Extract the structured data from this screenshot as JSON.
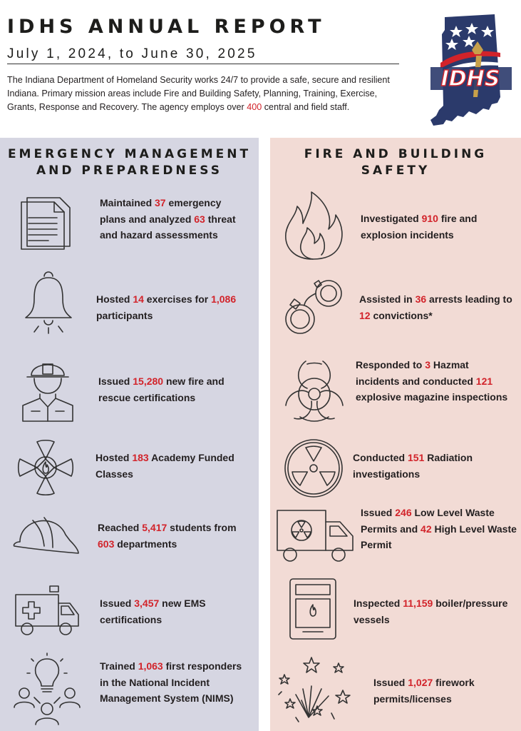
{
  "header": {
    "title": "IDHS ANNUAL REPORT",
    "subtitle": "July 1, 2024, to June 30, 2025",
    "intro_before": "The Indiana Department of Homeland Security works 24/7 to provide a safe, secure and resilient Indiana. Primary mission areas include Fire and Building Safety, Planning, Training, Exercise, Grants, Response and Recovery. The agency employs over ",
    "intro_number": "400",
    "intro_after": " central and field staff."
  },
  "logo": {
    "text": "IDHS"
  },
  "colors": {
    "accent": "#d2232a",
    "left_panel": "#d6d6e2",
    "right_panel": "#f2dbd5",
    "logo_navy": "#2b3a6b"
  },
  "left": {
    "title_line1": "EMERGENCY MANAGEMENT",
    "title_line2": "AND PREPAREDNESS",
    "items": [
      {
        "icon": "documents-icon",
        "parts": [
          [
            "Maintained ",
            false
          ],
          [
            "37",
            true
          ],
          [
            " emergency plans and analyzed ",
            false
          ],
          [
            "63",
            true
          ],
          [
            " threat and hazard assessments",
            false
          ]
        ]
      },
      {
        "icon": "bell-icon",
        "parts": [
          [
            "Hosted ",
            false
          ],
          [
            "14",
            true
          ],
          [
            " exercises for ",
            false
          ],
          [
            "1,086",
            true
          ],
          [
            " participants",
            false
          ]
        ]
      },
      {
        "icon": "firefighter-icon",
        "parts": [
          [
            "Issued ",
            false
          ],
          [
            "15,280",
            true
          ],
          [
            " new fire and rescue certifications",
            false
          ]
        ]
      },
      {
        "icon": "maltese-cross-icon",
        "parts": [
          [
            "Hosted ",
            false
          ],
          [
            "183",
            true
          ],
          [
            " Academy Funded Classes",
            false
          ]
        ]
      },
      {
        "icon": "fire-helmet-icon",
        "parts": [
          [
            "Reached ",
            false
          ],
          [
            "5,417",
            true
          ],
          [
            " students from ",
            false
          ],
          [
            "603",
            true
          ],
          [
            " departments",
            false
          ]
        ]
      },
      {
        "icon": "ambulance-icon",
        "parts": [
          [
            "Issued ",
            false
          ],
          [
            "3,457",
            true
          ],
          [
            " new EMS certifications",
            false
          ]
        ]
      },
      {
        "icon": "lightbulb-people-icon",
        "parts": [
          [
            "Trained ",
            false
          ],
          [
            "1,063",
            true
          ],
          [
            " first responders in the National Incident Management System (NIMS)",
            false
          ]
        ]
      }
    ]
  },
  "right": {
    "title_line1": "FIRE AND BUILDING",
    "title_line2": "SAFETY",
    "items": [
      {
        "icon": "flame-icon",
        "parts": [
          [
            "Investigated ",
            false
          ],
          [
            "910",
            true
          ],
          [
            " fire and explosion incidents",
            false
          ]
        ]
      },
      {
        "icon": "handcuffs-icon",
        "parts": [
          [
            "Assisted in ",
            false
          ],
          [
            "36",
            true
          ],
          [
            " arrests leading to ",
            false
          ],
          [
            "12",
            true
          ],
          [
            " convictions*",
            false
          ]
        ]
      },
      {
        "icon": "biohazard-icon",
        "parts": [
          [
            "Responded to ",
            false
          ],
          [
            "3",
            true
          ],
          [
            " Hazmat incidents and conducted ",
            false
          ],
          [
            "121",
            true
          ],
          [
            " explosive magazine inspections",
            false
          ]
        ]
      },
      {
        "icon": "radiation-icon",
        "parts": [
          [
            "Conducted ",
            false
          ],
          [
            "151",
            true
          ],
          [
            " Radiation investigations",
            false
          ]
        ]
      },
      {
        "icon": "radioactive-truck-icon",
        "parts": [
          [
            "Issued ",
            false
          ],
          [
            "246",
            true
          ],
          [
            " Low Level Waste Permits and ",
            false
          ],
          [
            "42",
            true
          ],
          [
            " High Level Waste Permit",
            false
          ]
        ]
      },
      {
        "icon": "boiler-icon",
        "parts": [
          [
            "Inspected ",
            false
          ],
          [
            "11,159",
            true
          ],
          [
            " boiler/pressure vessels",
            false
          ]
        ]
      },
      {
        "icon": "fireworks-icon",
        "parts": [
          [
            "Issued ",
            false
          ],
          [
            "1,027",
            true
          ],
          [
            " firework permits/licenses",
            false
          ]
        ]
      }
    ]
  }
}
